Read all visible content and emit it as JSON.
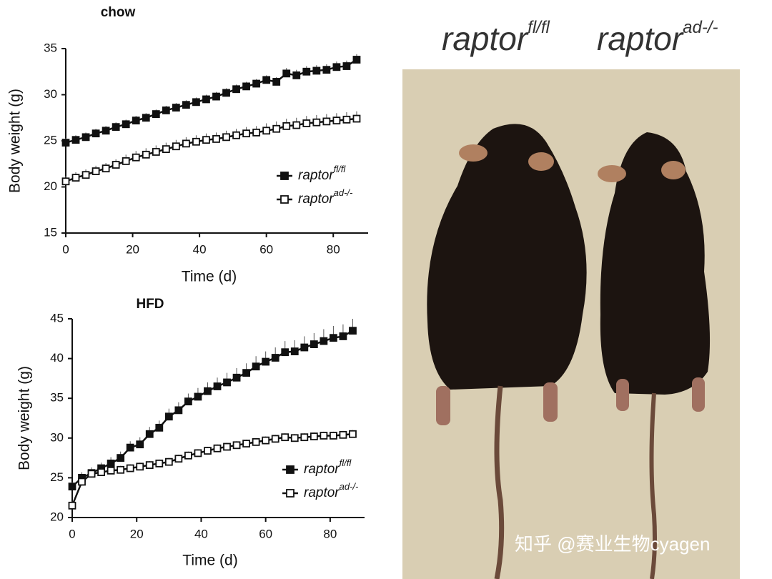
{
  "chart_data": [
    {
      "type": "line",
      "title": "chow",
      "x_label": "Time (d)",
      "y_label": "Body weight (g)",
      "x": [
        0,
        3,
        6,
        9,
        12,
        15,
        18,
        21,
        24,
        27,
        30,
        33,
        36,
        39,
        42,
        45,
        48,
        51,
        54,
        57,
        60,
        63,
        66,
        69,
        72,
        75,
        78,
        81,
        84,
        87
      ],
      "series": [
        {
          "name": "raptor",
          "name_sup": "fl/fl",
          "color": "#111111",
          "marker": "filled",
          "values": [
            24.8,
            25.1,
            25.4,
            25.8,
            26.1,
            26.5,
            26.8,
            27.2,
            27.5,
            27.9,
            28.3,
            28.6,
            28.9,
            29.2,
            29.5,
            29.8,
            30.2,
            30.6,
            30.9,
            31.2,
            31.6,
            31.4,
            32.3,
            32.1,
            32.5,
            32.6,
            32.7,
            33.0,
            33.1,
            33.8
          ],
          "errors": [
            0.5,
            0.5,
            0.5,
            0.5,
            0.5,
            0.5,
            0.5,
            0.5,
            0.5,
            0.5,
            0.5,
            0.5,
            0.5,
            0.5,
            0.5,
            0.5,
            0.5,
            0.5,
            0.5,
            0.5,
            0.5,
            0.5,
            0.6,
            0.6,
            0.6,
            0.6,
            0.6,
            0.6,
            0.6,
            0.6
          ]
        },
        {
          "name": "raptor",
          "name_sup": "ad-/-",
          "color": "#111111",
          "marker": "open",
          "values": [
            20.6,
            21.0,
            21.3,
            21.7,
            22.0,
            22.4,
            22.8,
            23.2,
            23.5,
            23.8,
            24.1,
            24.4,
            24.7,
            24.9,
            25.1,
            25.2,
            25.4,
            25.6,
            25.8,
            25.9,
            26.1,
            26.3,
            26.6,
            26.7,
            26.9,
            27.0,
            27.1,
            27.2,
            27.3,
            27.4
          ],
          "errors": [
            0.6,
            0.6,
            0.6,
            0.6,
            0.6,
            0.6,
            0.7,
            0.7,
            0.7,
            0.7,
            0.7,
            0.7,
            0.7,
            0.7,
            0.7,
            0.7,
            0.7,
            0.7,
            0.7,
            0.7,
            0.8,
            0.8,
            0.8,
            0.8,
            0.8,
            0.8,
            0.8,
            0.8,
            0.8,
            0.8
          ]
        }
      ],
      "xlim": [
        0,
        90
      ],
      "xticks": [
        0,
        20,
        40,
        60,
        80
      ],
      "ylim": [
        15,
        35
      ],
      "yticks": [
        15,
        20,
        25,
        30,
        35
      ]
    },
    {
      "type": "line",
      "title": "HFD",
      "x_label": "Time (d)",
      "y_label": "Body weight (g)",
      "x": [
        0,
        3,
        6,
        9,
        12,
        15,
        18,
        21,
        24,
        27,
        30,
        33,
        36,
        39,
        42,
        45,
        48,
        51,
        54,
        57,
        60,
        63,
        66,
        69,
        72,
        75,
        78,
        81,
        84,
        87
      ],
      "series": [
        {
          "name": "raptor",
          "name_sup": "fl/fl",
          "color": "#111111",
          "marker": "filled",
          "values": [
            23.9,
            25.0,
            25.6,
            26.2,
            26.8,
            27.5,
            28.8,
            29.2,
            30.5,
            31.3,
            32.7,
            33.5,
            34.6,
            35.2,
            35.9,
            36.5,
            37.0,
            37.6,
            38.2,
            39.0,
            39.6,
            40.1,
            40.8,
            40.9,
            41.4,
            41.8,
            42.2,
            42.6,
            42.8,
            43.5
          ],
          "errors": [
            0.6,
            0.7,
            0.7,
            0.7,
            0.8,
            0.8,
            0.8,
            0.9,
            0.9,
            0.9,
            1.0,
            1.0,
            1.0,
            1.1,
            1.1,
            1.1,
            1.2,
            1.2,
            1.2,
            1.3,
            1.3,
            1.3,
            1.4,
            1.4,
            1.4,
            1.4,
            1.5,
            1.5,
            1.5,
            1.5
          ]
        },
        {
          "name": "raptor",
          "name_sup": "ad-/-",
          "color": "#111111",
          "marker": "open",
          "values": [
            21.5,
            24.5,
            25.5,
            25.7,
            25.9,
            26.0,
            26.2,
            26.4,
            26.6,
            26.8,
            27.0,
            27.4,
            27.8,
            28.1,
            28.4,
            28.7,
            28.9,
            29.1,
            29.3,
            29.5,
            29.7,
            29.9,
            30.1,
            30.0,
            30.1,
            30.2,
            30.3,
            30.3,
            30.4,
            30.5
          ],
          "errors": [
            0.5,
            0.5,
            0.5,
            0.5,
            0.5,
            0.5,
            0.5,
            0.5,
            0.5,
            0.5,
            0.5,
            0.5,
            0.5,
            0.5,
            0.5,
            0.5,
            0.5,
            0.5,
            0.5,
            0.5,
            0.5,
            0.5,
            0.5,
            0.5,
            0.5,
            0.5,
            0.5,
            0.5,
            0.5,
            0.5
          ]
        }
      ],
      "xlim": [
        0,
        90
      ],
      "xticks": [
        0,
        20,
        40,
        60,
        80
      ],
      "ylim": [
        20,
        45
      ],
      "yticks": [
        20,
        25,
        30,
        35,
        40,
        45
      ]
    }
  ],
  "photo": {
    "labels": [
      {
        "text": "raptor",
        "sup": "fl/fl"
      },
      {
        "text": "raptor",
        "sup": "ad-/-"
      }
    ]
  },
  "watermark": "知乎 @赛业生物cyagen"
}
